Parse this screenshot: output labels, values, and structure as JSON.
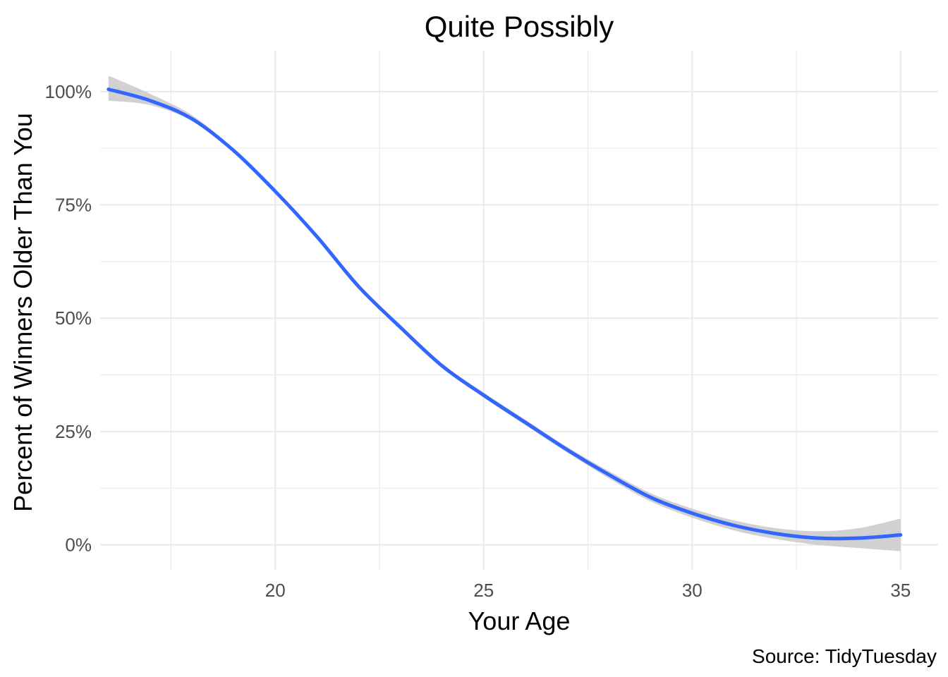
{
  "chart_data": {
    "type": "line",
    "title": "Quite Possibly",
    "xlabel": "Your Age",
    "ylabel": "Percent of Winners Older Than You",
    "caption": "Source: TidyTuesday",
    "xlim": [
      15.8,
      35.9
    ],
    "ylim": [
      -0.055,
      1.09
    ],
    "x_ticks": [
      20,
      25,
      30,
      35
    ],
    "x_tick_labels": [
      "20",
      "25",
      "30",
      "35"
    ],
    "x_minor_ticks": [
      17.5,
      22.5,
      27.5,
      32.5
    ],
    "y_ticks": [
      0,
      0.25,
      0.5,
      0.75,
      1.0
    ],
    "y_tick_labels": [
      "0%",
      "25%",
      "50%",
      "75%",
      "100%"
    ],
    "y_minor_ticks": [
      0.125,
      0.375,
      0.625,
      0.875
    ],
    "grid": true,
    "line_color": "#3366ff",
    "band_color": "#cccccc",
    "series": [
      {
        "x": [
          16,
          17,
          18,
          19,
          20,
          21,
          22,
          23,
          24,
          25,
          26,
          27,
          28,
          29,
          30,
          31,
          32,
          33,
          34,
          35
        ],
        "y": [
          1.005,
          0.98,
          0.94,
          0.87,
          0.78,
          0.68,
          0.57,
          0.48,
          0.395,
          0.33,
          0.27,
          0.21,
          0.155,
          0.105,
          0.07,
          0.043,
          0.025,
          0.015,
          0.015,
          0.022
        ],
        "ci_low": [
          0.98,
          0.97,
          0.935,
          0.866,
          0.776,
          0.675,
          0.565,
          0.476,
          0.39,
          0.325,
          0.264,
          0.204,
          0.147,
          0.096,
          0.06,
          0.032,
          0.013,
          0.0,
          -0.007,
          -0.014
        ],
        "ci_high": [
          1.035,
          0.995,
          0.948,
          0.874,
          0.784,
          0.685,
          0.575,
          0.484,
          0.4,
          0.336,
          0.276,
          0.216,
          0.163,
          0.114,
          0.08,
          0.054,
          0.037,
          0.03,
          0.037,
          0.058
        ]
      }
    ]
  }
}
